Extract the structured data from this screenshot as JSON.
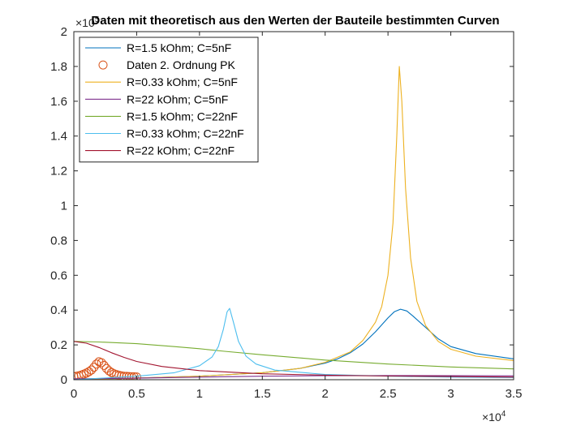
{
  "chart_data": {
    "type": "line",
    "title": "Daten mit theoretisch aus den Werten der Bauteile bestimmten Curven",
    "xlabel": "",
    "ylabel": "",
    "xlim": [
      0,
      35000
    ],
    "ylim": [
      0,
      200000
    ],
    "x_ticks": [
      {
        "value": 0,
        "label": "0"
      },
      {
        "value": 5000,
        "label": "0.5"
      },
      {
        "value": 10000,
        "label": "1"
      },
      {
        "value": 15000,
        "label": "1.5"
      },
      {
        "value": 20000,
        "label": "2"
      },
      {
        "value": 25000,
        "label": "2.5"
      },
      {
        "value": 30000,
        "label": "3"
      },
      {
        "value": 35000,
        "label": "3.5"
      }
    ],
    "y_ticks": [
      {
        "value": 0,
        "label": "0"
      },
      {
        "value": 20000,
        "label": "0.2"
      },
      {
        "value": 40000,
        "label": "0.4"
      },
      {
        "value": 60000,
        "label": "0.6"
      },
      {
        "value": 80000,
        "label": "0.8"
      },
      {
        "value": 100000,
        "label": "1"
      },
      {
        "value": 120000,
        "label": "1.2"
      },
      {
        "value": 140000,
        "label": "1.4"
      },
      {
        "value": 160000,
        "label": "1.6"
      },
      {
        "value": 180000,
        "label": "1.8"
      },
      {
        "value": 200000,
        "label": "2"
      }
    ],
    "x_multiplier": {
      "base": "×10",
      "exp": "4"
    },
    "y_multiplier": {
      "base": "×10",
      "exp": "5"
    },
    "grid": false,
    "legend_position": "top-left",
    "series": [
      {
        "name": "R=1.5 kOhm; C=5nF",
        "style": "line",
        "color": "#0072BD",
        "x": [
          0,
          5000,
          10000,
          15000,
          18000,
          20000,
          21000,
          22000,
          23000,
          24000,
          25000,
          25500,
          26000,
          26500,
          27000,
          28000,
          29000,
          30000,
          32000,
          35000
        ],
        "y": [
          0,
          1000,
          2000,
          4000,
          6500,
          9500,
          12000,
          15500,
          20500,
          27500,
          35500,
          39000,
          40500,
          39500,
          36500,
          30000,
          23500,
          19000,
          15000,
          12000
        ]
      },
      {
        "name": "Daten 2. Ordnung PK",
        "style": "marker",
        "color": "#D95319",
        "x": [
          0,
          200,
          400,
          600,
          800,
          1000,
          1200,
          1400,
          1600,
          1800,
          2000,
          2200,
          2400,
          2600,
          2800,
          3000,
          3200,
          3400,
          3600,
          3800,
          4000,
          4200,
          4400,
          4600,
          4800,
          5000
        ],
        "y": [
          1800,
          2000,
          2300,
          2700,
          3200,
          3800,
          4600,
          5600,
          7200,
          9000,
          10300,
          9800,
          8200,
          6500,
          5100,
          4100,
          3400,
          2900,
          2500,
          2200,
          2000,
          1900,
          1800,
          1700,
          1700,
          1600
        ]
      },
      {
        "name": "R=0.33 kOhm; C=5nF",
        "style": "line",
        "color": "#EDB120",
        "x": [
          0,
          5000,
          10000,
          15000,
          18000,
          20000,
          22000,
          23000,
          24000,
          24500,
          25000,
          25400,
          25700,
          25900,
          26100,
          26400,
          26800,
          27300,
          28000,
          29000,
          30000,
          32000,
          35000
        ],
        "y": [
          0,
          1000,
          2000,
          4000,
          6500,
          10000,
          16000,
          22500,
          33000,
          42000,
          60000,
          90000,
          140000,
          180000,
          160000,
          110000,
          70000,
          45000,
          31000,
          22000,
          17500,
          13500,
          11000
        ]
      },
      {
        "name": "R=22 kOhm; C=5nF",
        "style": "line",
        "color": "#7E2F8E",
        "x": [
          0,
          5000,
          10000,
          15000,
          20000,
          25000,
          30000,
          35000
        ],
        "y": [
          500,
          900,
          1500,
          2000,
          2300,
          2400,
          2300,
          2200
        ]
      },
      {
        "name": "R=1.5 kOhm; C=22nF",
        "style": "line",
        "color": "#77AC30",
        "x": [
          0,
          2000,
          5000,
          8000,
          10000,
          12000,
          15000,
          20000,
          25000,
          30000,
          35000
        ],
        "y": [
          22000,
          21700,
          20700,
          19000,
          17800,
          16300,
          14300,
          11300,
          9000,
          7300,
          6200
        ]
      },
      {
        "name": "R=0.33 kOhm; C=22nF",
        "style": "line",
        "color": "#4DBEEE",
        "x": [
          0,
          5000,
          8000,
          10000,
          11000,
          11500,
          11900,
          12200,
          12400,
          12700,
          13100,
          13700,
          14500,
          16000,
          20000,
          25000,
          30000,
          35000
        ],
        "y": [
          0,
          2000,
          4000,
          8000,
          13000,
          19000,
          29000,
          39000,
          41000,
          33000,
          22000,
          13500,
          9000,
          5500,
          3000,
          2000,
          1500,
          1200
        ]
      },
      {
        "name": "R=22 kOhm; C=22nF",
        "style": "line",
        "color": "#A2142F",
        "x": [
          0,
          1000,
          2000,
          3000,
          4000,
          5000,
          7000,
          10000,
          15000,
          20000,
          25000,
          30000,
          35000
        ],
        "y": [
          22000,
          21000,
          18500,
          15500,
          12800,
          10500,
          7600,
          5200,
          3400,
          2600,
          2100,
          1800,
          1500
        ]
      }
    ]
  }
}
